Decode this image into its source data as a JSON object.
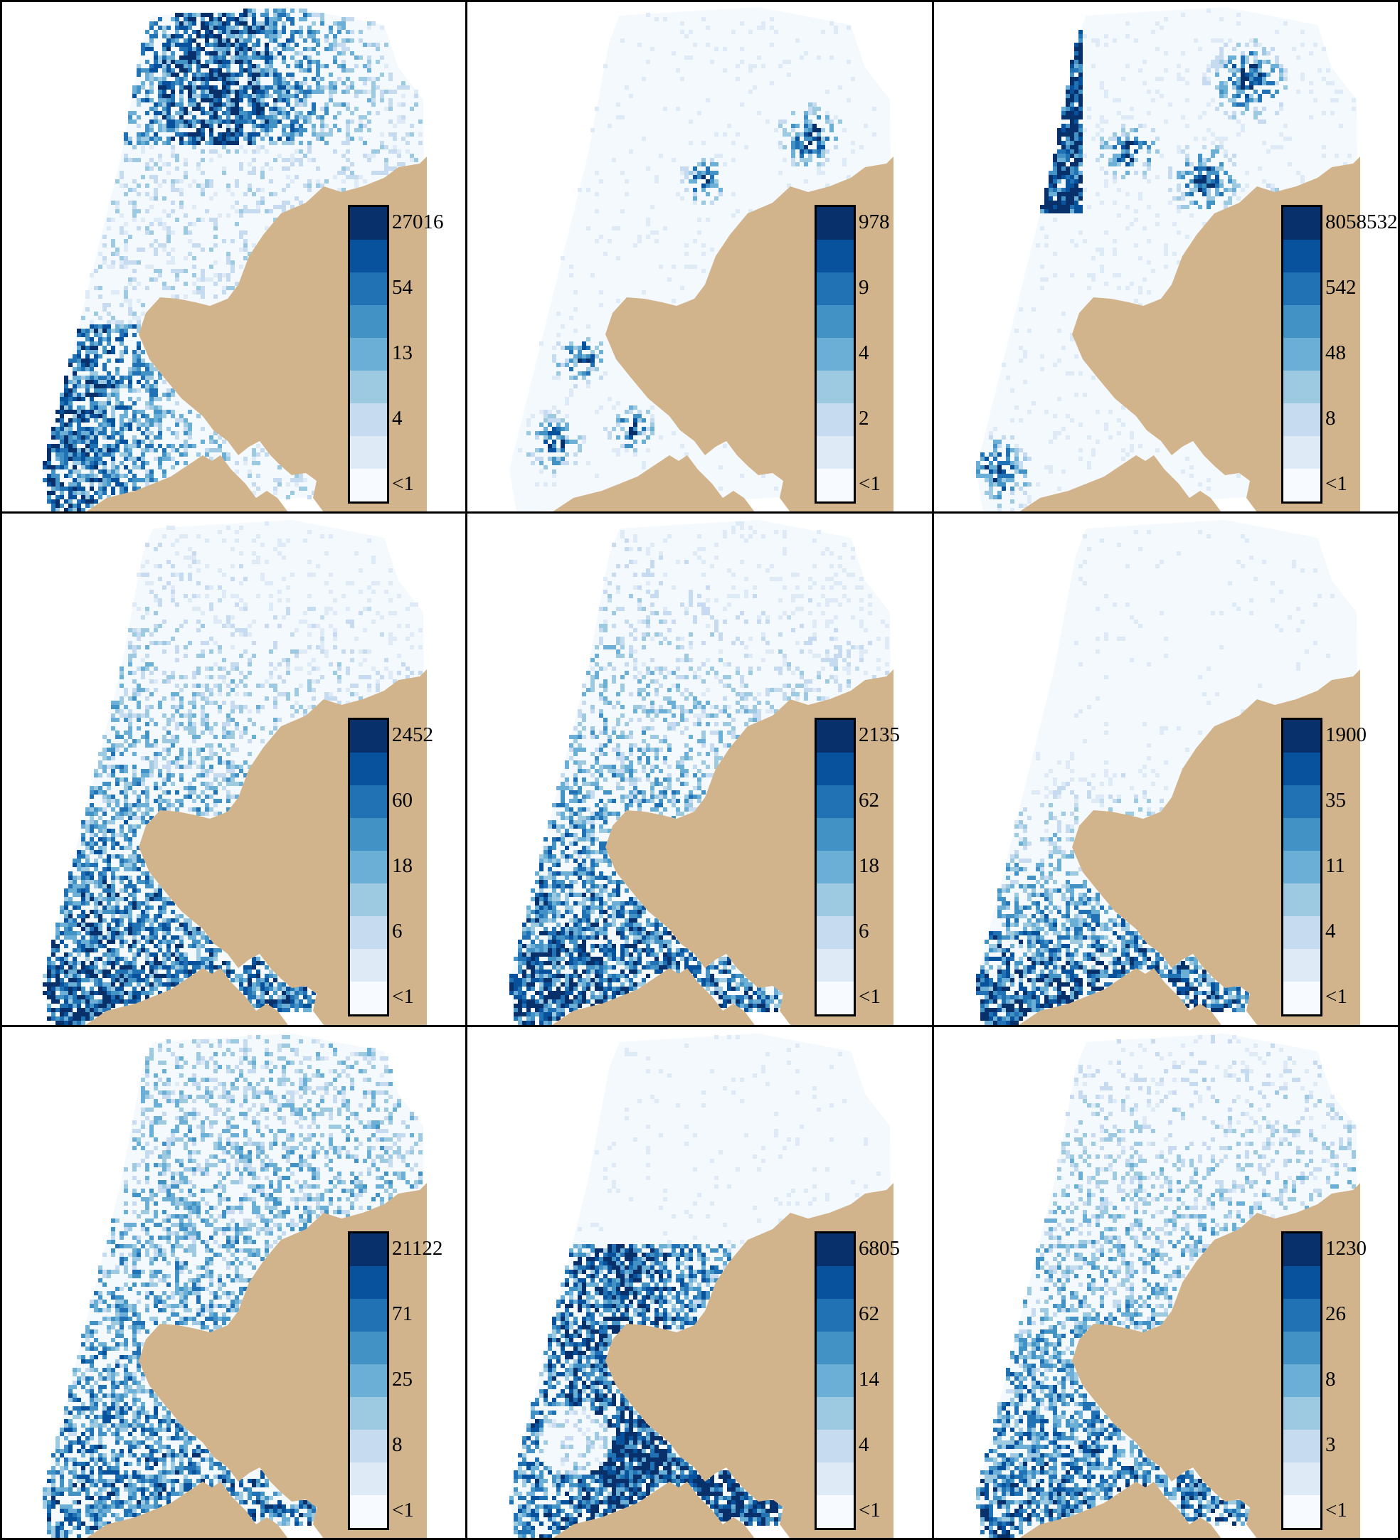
{
  "colors": {
    "land": "#d2b48c",
    "sea_base": "#f4f9fe",
    "border": "#000000",
    "ramp": [
      "#f7fbff",
      "#deebf7",
      "#c6dbef",
      "#9ecae1",
      "#6baed6",
      "#4292c6",
      "#2171b5",
      "#08519c",
      "#08306b"
    ]
  },
  "panels": [
    {
      "id": "r1c1",
      "legend_ticks": [
        "27016",
        "54",
        "13",
        "4",
        "<1"
      ],
      "pattern": "dense-north-and-south"
    },
    {
      "id": "r1c2",
      "legend_ticks": [
        "978",
        "9",
        "4",
        "2",
        "<1"
      ],
      "pattern": "sparse-patches"
    },
    {
      "id": "r1c3",
      "legend_ticks": [
        "8058532",
        "542",
        "48",
        "8",
        "<1"
      ],
      "pattern": "west-edge-and-northeast"
    },
    {
      "id": "r2c1",
      "legend_ticks": [
        "2452",
        "60",
        "18",
        "6",
        "<1"
      ],
      "pattern": "dense-southwest"
    },
    {
      "id": "r2c2",
      "legend_ticks": [
        "2135",
        "62",
        "18",
        "6",
        "<1"
      ],
      "pattern": "dense-southwest"
    },
    {
      "id": "r2c3",
      "legend_ticks": [
        "1900",
        "35",
        "11",
        "4",
        "<1"
      ],
      "pattern": "south-coastal"
    },
    {
      "id": "r3c1",
      "legend_ticks": [
        "21122",
        "71",
        "25",
        "8",
        "<1"
      ],
      "pattern": "speckled-everywhere"
    },
    {
      "id": "r3c2",
      "legend_ticks": [
        "6805",
        "62",
        "14",
        "4",
        "<1"
      ],
      "pattern": "dense-west-gulf"
    },
    {
      "id": "r3c3",
      "legend_ticks": [
        "1230",
        "26",
        "8",
        "3",
        "<1"
      ],
      "pattern": "speckled-south"
    }
  ]
}
